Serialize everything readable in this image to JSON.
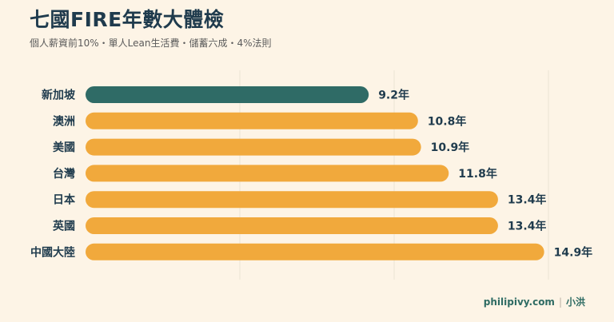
{
  "header": {
    "title": "七國FIRE年數大體檢",
    "subtitle": "個人薪資前10%・單人Lean生活費・儲蓄六成・4%法則"
  },
  "footer": {
    "site": "philipivy.com",
    "author": "小洪"
  },
  "colors": {
    "highlight": "#2f6b66",
    "bar": "#f1a93c",
    "label_text": "#1f3b4d",
    "grid": "#ece3d4"
  },
  "chart_data": {
    "type": "bar",
    "orientation": "horizontal",
    "categories": [
      "新加坡",
      "澳洲",
      "美國",
      "台灣",
      "日本",
      "英國",
      "中國大陸"
    ],
    "values": [
      9.2,
      10.8,
      10.9,
      11.8,
      13.4,
      13.4,
      14.9
    ],
    "value_labels": [
      "9.2年",
      "10.8年",
      "10.9年",
      "11.8年",
      "13.4年",
      "13.4年",
      "14.9年"
    ],
    "highlight_category": "新加坡",
    "xlim": [
      0,
      15
    ],
    "grid": true,
    "title": "七國FIRE年數大體檢",
    "subtitle": "個人薪資前10%・單人Lean生活費・儲蓄六成・4%法則",
    "xlabel": "",
    "ylabel": ""
  }
}
